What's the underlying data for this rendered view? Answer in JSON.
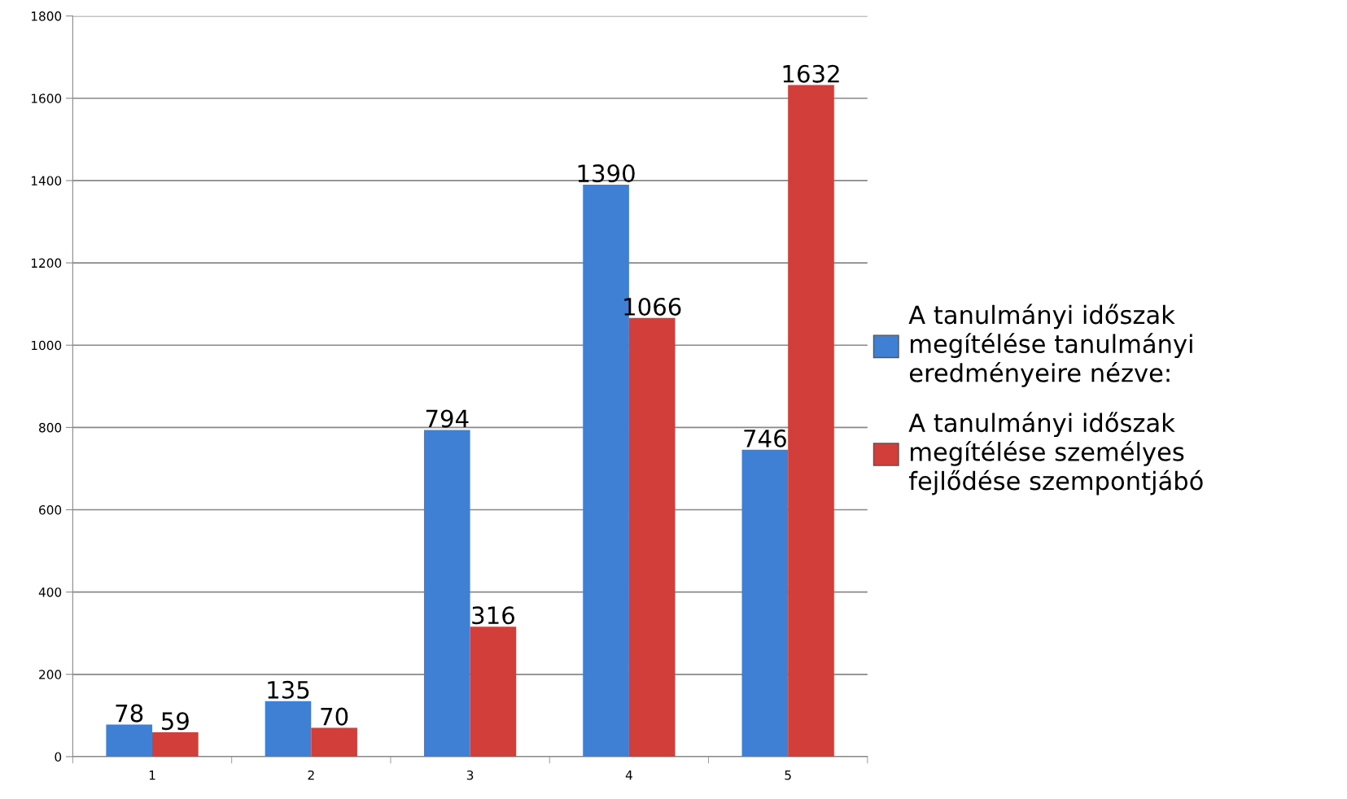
{
  "chart_data": {
    "type": "bar",
    "categories": [
      "1",
      "2",
      "3",
      "4",
      "5"
    ],
    "series": [
      {
        "name": "A tanulmányi időszak megítélése tanulmányi eredményeire nézve:",
        "color": "#3f7fd4",
        "values": [
          78,
          135,
          794,
          1390,
          746
        ]
      },
      {
        "name": "A tanulmányi időszak megítélése személyes fejlődése szempontjábó",
        "color": "#d23f3b",
        "values": [
          59,
          70,
          316,
          1066,
          1632
        ]
      }
    ],
    "ylim": [
      0,
      1800
    ],
    "yticks": [
      0,
      200,
      400,
      600,
      800,
      1000,
      1200,
      1400,
      1600,
      1800
    ],
    "grid": "y",
    "legend": "right",
    "data_labels": true
  }
}
